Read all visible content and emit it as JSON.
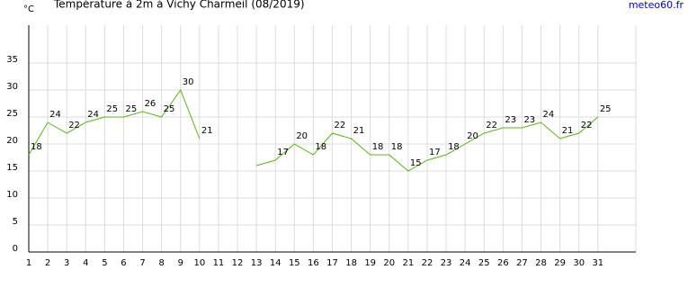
{
  "chart_data": {
    "type": "line",
    "title": "Température à 2m à Vichy Charmeil (08/2019)",
    "y_label": "°C",
    "source": "meteo60.fr",
    "x": [
      1,
      2,
      3,
      4,
      5,
      6,
      7,
      8,
      9,
      10,
      11,
      12,
      13,
      14,
      15,
      16,
      17,
      18,
      19,
      20,
      21,
      22,
      23,
      24,
      25,
      26,
      27,
      28,
      29,
      30,
      31
    ],
    "series": [
      {
        "name": "Température",
        "color": "#5cb11c",
        "values": [
          18,
          24,
          22,
          24,
          25,
          25,
          26,
          25,
          30,
          21,
          null,
          null,
          16,
          17,
          20,
          18,
          22,
          21,
          18,
          18,
          15,
          17,
          18,
          20,
          22,
          23,
          23,
          24,
          21,
          22,
          25
        ],
        "value_labels": [
          "18",
          "24",
          "22",
          "24",
          "25",
          "25",
          "26",
          "25",
          "30",
          "21",
          null,
          null,
          null,
          "17",
          "20",
          "18",
          "22",
          "21",
          "18",
          "18",
          "15",
          "17",
          "18",
          "20",
          "22",
          "23",
          "23",
          "24",
          "21",
          "22",
          "25"
        ]
      }
    ],
    "xlim": [
      1,
      33
    ],
    "xticks": [
      1,
      2,
      3,
      4,
      5,
      6,
      7,
      8,
      9,
      10,
      11,
      12,
      13,
      14,
      15,
      16,
      17,
      18,
      19,
      20,
      21,
      22,
      23,
      24,
      25,
      26,
      27,
      28,
      29,
      30,
      31
    ],
    "ylim": [
      0,
      42
    ],
    "yticks": [
      0,
      5,
      10,
      15,
      20,
      25,
      30,
      35
    ],
    "grid": true
  }
}
